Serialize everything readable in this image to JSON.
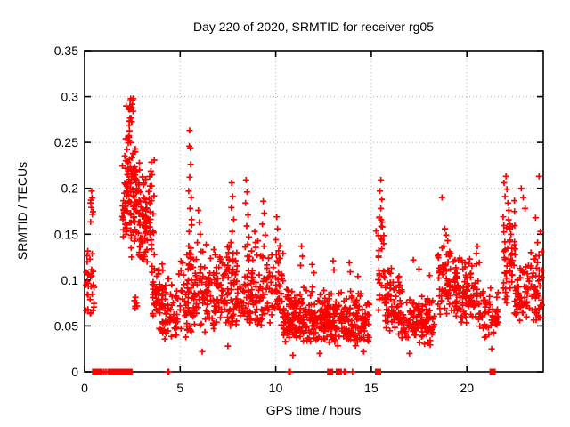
{
  "chart_data": {
    "type": "scatter",
    "title": "Day 220 of 2020, SRMTID for receiver rg05",
    "xlabel": "GPS time / hours",
    "ylabel": "SRMTID / TECUs",
    "xlim": [
      0,
      24
    ],
    "ylim": [
      0,
      0.35
    ],
    "xticks": [
      0,
      5,
      10,
      15,
      20
    ],
    "xtick_labels": [
      "0",
      "5",
      "10",
      "15",
      "20"
    ],
    "yticks": [
      0,
      0.05,
      0.1,
      0.15,
      0.2,
      0.25,
      0.3,
      0.35
    ],
    "ytick_labels": [
      "0",
      "0.05",
      "0.1",
      "0.15",
      "0.2",
      "0.25",
      "0.3",
      "0.35"
    ],
    "grid": true,
    "grid_color": "#b4b4b4",
    "axis_color": "#000000",
    "marker": "plus",
    "marker_color": "#ff0000",
    "marker_size_px": 7,
    "legend": "none",
    "random_seed": 42,
    "scatter_bands": [
      {
        "x0": 0.05,
        "x1": 0.52,
        "n": 30,
        "ymin": 0.055,
        "ymode": 0.08,
        "ymax": 0.165
      },
      {
        "x0": 0.3,
        "x1": 0.45,
        "n": 6,
        "ymin": 0.16,
        "ymode": 0.18,
        "ymax": 0.198
      },
      {
        "x0": 1.95,
        "x1": 2.2,
        "n": 20,
        "ymin": 0.13,
        "ymode": 0.16,
        "ymax": 0.23
      },
      {
        "x0": 2.1,
        "x1": 2.45,
        "n": 45,
        "ymin": 0.14,
        "ymode": 0.2,
        "ymax": 0.3
      },
      {
        "x0": 2.3,
        "x1": 2.55,
        "n": 18,
        "ymin": 0.24,
        "ymode": 0.28,
        "ymax": 0.316
      },
      {
        "x0": 2.4,
        "x1": 2.85,
        "n": 60,
        "ymin": 0.12,
        "ymode": 0.17,
        "ymax": 0.26
      },
      {
        "x0": 2.8,
        "x1": 3.25,
        "n": 55,
        "ymin": 0.11,
        "ymode": 0.15,
        "ymax": 0.235
      },
      {
        "x0": 3.2,
        "x1": 3.65,
        "n": 45,
        "ymin": 0.1,
        "ymode": 0.13,
        "ymax": 0.25
      },
      {
        "x0": 2.5,
        "x1": 2.75,
        "n": 6,
        "ymin": 0.065,
        "ymode": 0.075,
        "ymax": 0.09
      },
      {
        "x0": 3.55,
        "x1": 4.1,
        "n": 55,
        "ymin": 0.045,
        "ymode": 0.075,
        "ymax": 0.135
      },
      {
        "x0": 4.05,
        "x1": 4.9,
        "n": 60,
        "ymin": 0.028,
        "ymode": 0.05,
        "ymax": 0.105
      },
      {
        "x0": 4.9,
        "x1": 7.2,
        "n": 165,
        "ymin": 0.035,
        "ymode": 0.07,
        "ymax": 0.14
      },
      {
        "x0": 5.42,
        "x1": 5.62,
        "n": 10,
        "ymin": 0.09,
        "ymode": 0.12,
        "ymax": 0.185
      },
      {
        "x0": 7.2,
        "x1": 10.4,
        "n": 230,
        "ymin": 0.04,
        "ymode": 0.08,
        "ymax": 0.145
      },
      {
        "x0": 10.4,
        "x1": 12.6,
        "n": 195,
        "ymin": 0.028,
        "ymode": 0.05,
        "ymax": 0.098
      },
      {
        "x0": 12.6,
        "x1": 14.9,
        "n": 195,
        "ymin": 0.025,
        "ymode": 0.05,
        "ymax": 0.092
      },
      {
        "x0": 15.25,
        "x1": 15.7,
        "n": 28,
        "ymin": 0.06,
        "ymode": 0.11,
        "ymax": 0.2
      },
      {
        "x0": 15.7,
        "x1": 16.6,
        "n": 70,
        "ymin": 0.04,
        "ymode": 0.07,
        "ymax": 0.12
      },
      {
        "x0": 16.6,
        "x1": 18.3,
        "n": 130,
        "ymin": 0.028,
        "ymode": 0.05,
        "ymax": 0.085
      },
      {
        "x0": 18.45,
        "x1": 19.5,
        "n": 80,
        "ymin": 0.05,
        "ymode": 0.085,
        "ymax": 0.15
      },
      {
        "x0": 19.35,
        "x1": 20.6,
        "n": 85,
        "ymin": 0.045,
        "ymode": 0.08,
        "ymax": 0.135
      },
      {
        "x0": 20.6,
        "x1": 21.7,
        "n": 60,
        "ymin": 0.032,
        "ymode": 0.055,
        "ymax": 0.1
      },
      {
        "x0": 21.9,
        "x1": 22.55,
        "n": 55,
        "ymin": 0.06,
        "ymode": 0.11,
        "ymax": 0.195
      },
      {
        "x0": 22.55,
        "x1": 23.3,
        "n": 55,
        "ymin": 0.045,
        "ymode": 0.075,
        "ymax": 0.13
      },
      {
        "x0": 23.3,
        "x1": 23.95,
        "n": 45,
        "ymin": 0.04,
        "ymode": 0.08,
        "ymax": 0.135
      }
    ],
    "feature_points": [
      [
        0.33,
        0.187
      ],
      [
        0.37,
        0.197
      ],
      [
        5.5,
        0.263
      ],
      [
        5.48,
        0.246
      ],
      [
        5.53,
        0.244
      ],
      [
        5.55,
        0.226
      ],
      [
        5.5,
        0.212
      ],
      [
        5.45,
        0.197
      ],
      [
        5.58,
        0.19
      ],
      [
        5.52,
        0.178
      ],
      [
        5.6,
        0.166
      ],
      [
        5.47,
        0.153
      ],
      [
        5.95,
        0.176
      ],
      [
        6.0,
        0.163
      ],
      [
        6.05,
        0.15
      ],
      [
        5.9,
        0.141
      ],
      [
        6.1,
        0.131
      ],
      [
        7.7,
        0.206
      ],
      [
        7.75,
        0.191
      ],
      [
        7.68,
        0.179
      ],
      [
        7.8,
        0.166
      ],
      [
        7.72,
        0.153
      ],
      [
        7.65,
        0.141
      ],
      [
        7.78,
        0.129
      ],
      [
        8.45,
        0.209
      ],
      [
        8.5,
        0.196
      ],
      [
        8.42,
        0.184
      ],
      [
        8.55,
        0.171
      ],
      [
        8.48,
        0.159
      ],
      [
        8.6,
        0.147
      ],
      [
        8.4,
        0.136
      ],
      [
        8.52,
        0.126
      ],
      [
        8.9,
        0.153
      ],
      [
        8.95,
        0.141
      ],
      [
        9.35,
        0.186
      ],
      [
        9.4,
        0.173
      ],
      [
        9.3,
        0.161
      ],
      [
        9.45,
        0.149
      ],
      [
        9.38,
        0.137
      ],
      [
        9.32,
        0.126
      ],
      [
        10.05,
        0.169
      ],
      [
        10.1,
        0.156
      ],
      [
        10.0,
        0.144
      ],
      [
        10.15,
        0.132
      ],
      [
        10.08,
        0.121
      ],
      [
        11.35,
        0.137
      ],
      [
        11.4,
        0.126
      ],
      [
        11.3,
        0.116
      ],
      [
        11.9,
        0.117
      ],
      [
        12.0,
        0.108
      ],
      [
        13.0,
        0.121
      ],
      [
        13.05,
        0.111
      ],
      [
        13.85,
        0.119
      ],
      [
        13.9,
        0.109
      ],
      [
        14.3,
        0.104
      ],
      [
        15.5,
        0.209
      ],
      [
        15.45,
        0.197
      ],
      [
        15.55,
        0.188
      ],
      [
        15.5,
        0.178
      ],
      [
        15.42,
        0.168
      ],
      [
        15.58,
        0.158
      ],
      [
        17.2,
        0.122
      ],
      [
        17.5,
        0.112
      ],
      [
        18.05,
        0.105
      ],
      [
        18.7,
        0.19
      ],
      [
        18.85,
        0.156
      ],
      [
        18.92,
        0.149
      ],
      [
        19.0,
        0.143
      ],
      [
        18.8,
        0.137
      ],
      [
        19.1,
        0.131
      ],
      [
        19.9,
        0.119
      ],
      [
        20.15,
        0.123
      ],
      [
        20.5,
        0.129
      ],
      [
        20.55,
        0.137
      ],
      [
        20.65,
        0.119
      ],
      [
        21.95,
        0.206
      ],
      [
        22.05,
        0.213
      ],
      [
        22.1,
        0.199
      ],
      [
        22.0,
        0.191
      ],
      [
        22.15,
        0.184
      ],
      [
        22.2,
        0.176
      ],
      [
        21.9,
        0.169
      ],
      [
        22.25,
        0.161
      ],
      [
        22.85,
        0.2
      ],
      [
        22.95,
        0.19
      ],
      [
        23.05,
        0.178
      ],
      [
        23.78,
        0.213
      ],
      [
        23.6,
        0.168
      ],
      [
        23.85,
        0.153
      ],
      [
        23.7,
        0.141
      ],
      [
        23.9,
        0.131
      ],
      [
        6.15,
        0.022
      ],
      [
        7.5,
        0.028
      ],
      [
        10.9,
        0.018
      ],
      [
        12.3,
        0.02
      ],
      [
        14.6,
        0.022
      ],
      [
        17.0,
        0.02
      ],
      [
        21.3,
        0.025
      ]
    ],
    "zero_flag_squares_x": [
      0.55,
      0.8,
      1.42,
      1.6,
      1.75,
      1.95,
      2.05,
      2.27,
      2.35,
      12.85,
      13.3,
      15.35,
      21.35
    ],
    "zero_flag_plus_x": [
      1.02,
      1.12,
      1.22,
      4.33,
      4.41,
      10.68,
      10.76,
      13.58,
      13.66,
      14.02
    ]
  }
}
